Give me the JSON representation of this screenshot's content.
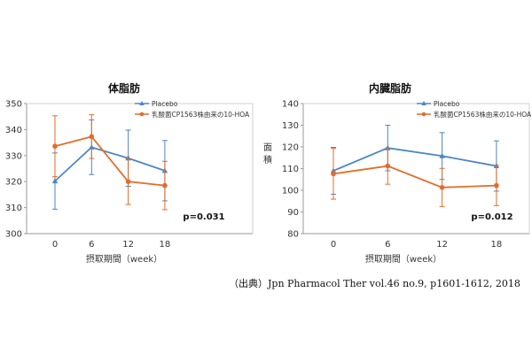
{
  "chart_data": [
    {
      "type": "line",
      "title": "体脂肪",
      "xlabel": "摂取期間（week）",
      "ylabel": "",
      "x": [
        0,
        6,
        12,
        18
      ],
      "x_tick_labels": [
        "0",
        "6",
        "12",
        "18"
      ],
      "ylim": [
        300,
        350
      ],
      "y_ticks": [
        300,
        310,
        320,
        330,
        340,
        350
      ],
      "grid": false,
      "legend_position": "top-right",
      "annotation": "p=0.031",
      "series": [
        {
          "name": "Placebo",
          "color": "#4A86C7",
          "marker": "triangle",
          "values": [
            320.2,
            333.2,
            329.0,
            324.2
          ],
          "error": [
            10.8,
            10.5,
            10.8,
            11.6
          ]
        },
        {
          "name": "乳酸菌CP1563株由来の10-HOA",
          "color": "#E36C2A",
          "marker": "circle",
          "values": [
            333.6,
            337.3,
            320.0,
            318.5
          ],
          "error": [
            11.7,
            8.4,
            8.8,
            9.3
          ]
        }
      ]
    },
    {
      "type": "line",
      "title": "内臓脂肪",
      "xlabel": "摂取期間（week）",
      "ylabel": "面積",
      "x": [
        0,
        6,
        12,
        18
      ],
      "x_tick_labels": [
        "0",
        "6",
        "12",
        "18"
      ],
      "ylim": [
        80,
        140
      ],
      "y_ticks": [
        80,
        90,
        100,
        110,
        120,
        130,
        140
      ],
      "grid": false,
      "legend_position": "top-right",
      "annotation": "p=0.012",
      "series": [
        {
          "name": "Placebo",
          "color": "#4A86C7",
          "marker": "triangle",
          "values": [
            109.0,
            119.5,
            115.8,
            111.2
          ],
          "error": [
            10.8,
            10.5,
            10.8,
            11.6
          ]
        },
        {
          "name": "乳酸菌CP1563株由来の10-HOA",
          "color": "#E36C2A",
          "marker": "circle",
          "values": [
            107.6,
            111.2,
            101.3,
            102.2
          ],
          "error": [
            11.7,
            8.4,
            8.8,
            9.3
          ]
        }
      ]
    }
  ],
  "source": "（出典）Jpn Pharmacol Ther vol.46 no.9, p1601-1612, 2018"
}
